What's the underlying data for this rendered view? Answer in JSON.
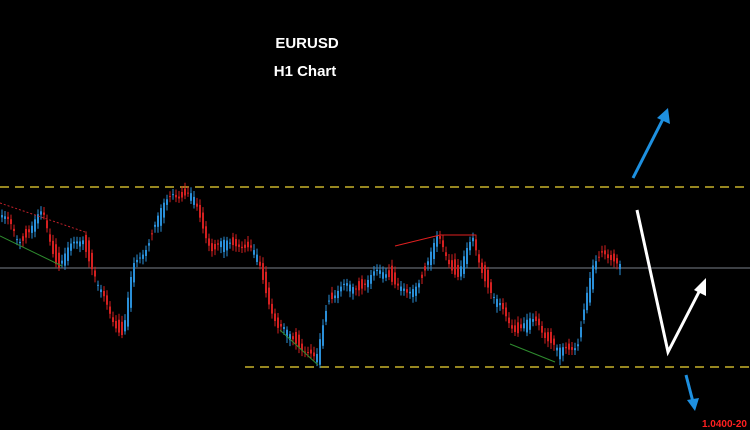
{
  "header": {
    "symbol": "EURUSD",
    "timeframe": "H1 Chart"
  },
  "price_label": "1.0400-20"
}
